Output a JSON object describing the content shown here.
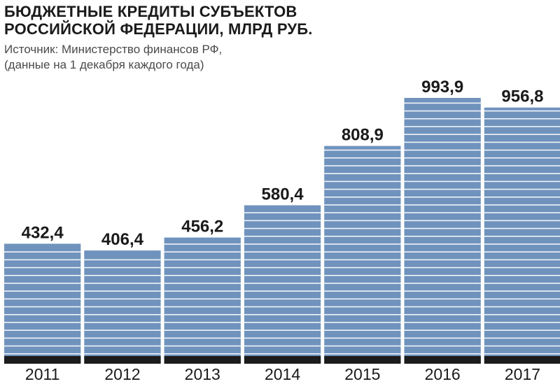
{
  "chart_data": {
    "type": "bar",
    "title_lines": [
      "БЮДЖЕТНЫЕ КРЕДИТЫ СУБЪЕКТОВ",
      "РОССИЙСКОЙ ФЕДЕРАЦИИ, МЛРД РУБ."
    ],
    "subtitle_lines": [
      "Источник: Министерство финансов РФ,",
      "(данные на 1 декабря каждого года)"
    ],
    "categories": [
      "2011",
      "2012",
      "2013",
      "2014",
      "2015",
      "2016",
      "2017"
    ],
    "values": [
      432.4,
      406.4,
      456.2,
      580.4,
      808.9,
      993.9,
      956.8
    ],
    "value_labels": [
      "432,4",
      "406,4",
      "456,2",
      "580,4",
      "808,9",
      "993,9",
      "956,8"
    ],
    "xlabel": "",
    "ylabel": "",
    "ylim": [
      0,
      1000
    ],
    "grid": false,
    "legend": "none",
    "colors": {
      "bar": "#6f93bd",
      "stripe": "#ffffff",
      "base": "#1c1c1c",
      "text": "#1a1a1a"
    }
  }
}
